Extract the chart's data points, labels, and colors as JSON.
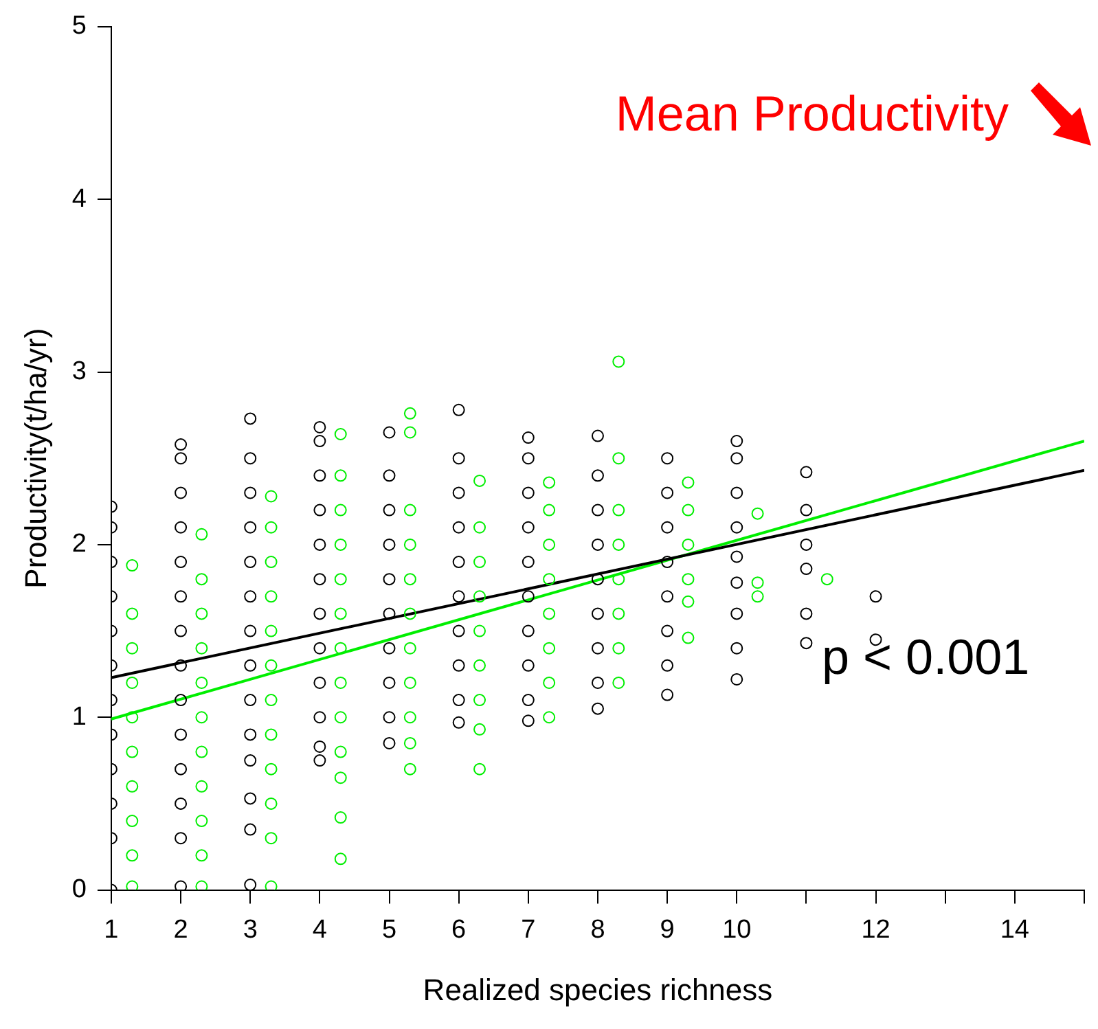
{
  "chart_data": {
    "type": "scatter",
    "xlabel": "Realized species richness",
    "ylabel": "Productivity(t/ha/yr)",
    "annotations": [
      "Mean Productivity",
      "p < 0.001"
    ],
    "xlim": [
      1,
      15
    ],
    "xticks": [
      1,
      2,
      3,
      4,
      5,
      6,
      7,
      8,
      9,
      10,
      {
        "value": 11,
        "label": null
      },
      12,
      {
        "value": 13,
        "label": null
      },
      14,
      {
        "value": 15,
        "label": null
      }
    ],
    "ylim": [
      0,
      5
    ],
    "yticks": [
      0,
      1,
      2,
      3,
      4,
      5
    ],
    "grid": false,
    "legend": false,
    "marker": "circle",
    "series": [
      {
        "color": "#000000",
        "x": [
          1,
          1,
          1,
          1,
          1,
          1,
          1,
          1,
          1,
          1,
          1,
          1,
          2,
          2,
          2,
          2,
          2,
          2,
          2,
          2,
          2,
          2,
          2,
          2,
          2,
          2,
          3,
          3,
          3,
          3,
          3,
          3,
          3,
          3,
          3,
          3,
          3,
          3,
          3,
          3,
          4,
          4,
          4,
          4,
          4,
          4,
          4,
          4,
          4,
          4,
          4,
          4,
          5,
          5,
          5,
          5,
          5,
          5,
          5,
          5,
          5,
          5,
          6,
          6,
          6,
          6,
          6,
          6,
          6,
          6,
          6,
          6,
          7,
          7,
          7,
          7,
          7,
          7,
          7,
          7,
          7,
          7,
          8,
          8,
          8,
          8,
          8,
          8,
          8,
          8,
          8,
          9,
          9,
          9,
          9,
          9,
          9,
          9,
          9,
          10,
          10,
          10,
          10,
          10,
          10,
          10,
          10,
          10,
          11,
          11,
          11,
          11,
          11,
          11,
          12,
          12
        ],
        "values": [
          0,
          0.3,
          0.5,
          0.7,
          0.9,
          1.1,
          1.3,
          1.5,
          1.7,
          1.9,
          2.1,
          2.22,
          0.02,
          0.3,
          0.5,
          0.7,
          0.9,
          1.1,
          1.3,
          1.5,
          1.7,
          1.9,
          2.1,
          2.3,
          2.5,
          2.58,
          0.03,
          0.35,
          0.53,
          0.75,
          0.9,
          1.1,
          1.3,
          1.5,
          1.7,
          1.9,
          2.1,
          2.3,
          2.5,
          2.73,
          0.75,
          0.83,
          1.0,
          1.2,
          1.4,
          1.6,
          1.8,
          2.0,
          2.2,
          2.4,
          2.6,
          2.68,
          0.85,
          1.0,
          1.2,
          1.4,
          1.6,
          1.8,
          2.0,
          2.2,
          2.4,
          2.65,
          0.97,
          1.1,
          1.3,
          1.5,
          1.7,
          1.9,
          2.1,
          2.3,
          2.5,
          2.78,
          0.98,
          1.1,
          1.3,
          1.5,
          1.7,
          1.9,
          2.1,
          2.3,
          2.5,
          2.62,
          1.05,
          1.2,
          1.4,
          1.6,
          1.8,
          2.0,
          2.2,
          2.4,
          2.63,
          1.13,
          1.3,
          1.5,
          1.7,
          1.9,
          2.1,
          2.3,
          2.5,
          1.22,
          1.4,
          1.6,
          1.78,
          1.93,
          2.1,
          2.3,
          2.5,
          2.6,
          1.43,
          1.6,
          1.86,
          2.0,
          2.2,
          2.42,
          1.45,
          1.7
        ]
      },
      {
        "color": "#00ee00",
        "x": [
          1.3,
          1.3,
          1.3,
          1.3,
          1.3,
          1.3,
          1.3,
          1.3,
          1.3,
          1.3,
          2.3,
          2.3,
          2.3,
          2.3,
          2.3,
          2.3,
          2.3,
          2.3,
          2.3,
          2.3,
          2.3,
          3.3,
          3.3,
          3.3,
          3.3,
          3.3,
          3.3,
          3.3,
          3.3,
          3.3,
          3.3,
          3.3,
          3.3,
          4.3,
          4.3,
          4.3,
          4.3,
          4.3,
          4.3,
          4.3,
          4.3,
          4.3,
          4.3,
          4.3,
          4.3,
          4.3,
          5.3,
          5.3,
          5.3,
          5.3,
          5.3,
          5.3,
          5.3,
          5.3,
          5.3,
          5.3,
          5.3,
          6.3,
          6.3,
          6.3,
          6.3,
          6.3,
          6.3,
          6.3,
          6.3,
          6.3,
          7.3,
          7.3,
          7.3,
          7.3,
          7.3,
          7.3,
          7.3,
          7.3,
          8.3,
          8.3,
          8.3,
          8.3,
          8.3,
          8.3,
          8.3,
          8.3,
          9.3,
          9.3,
          9.3,
          9.3,
          9.3,
          9.3,
          10.3,
          10.3,
          10.3,
          11.3
        ],
        "values": [
          0.02,
          0.2,
          0.4,
          0.6,
          0.8,
          1.0,
          1.2,
          1.4,
          1.6,
          1.88,
          0.02,
          0.2,
          0.4,
          0.6,
          0.8,
          1.0,
          1.2,
          1.4,
          1.6,
          1.8,
          2.06,
          0.02,
          0.3,
          0.5,
          0.7,
          0.9,
          1.1,
          1.3,
          1.5,
          1.7,
          1.9,
          2.1,
          2.28,
          0.18,
          0.42,
          0.65,
          0.8,
          1.0,
          1.2,
          1.4,
          1.6,
          1.8,
          2.0,
          2.2,
          2.4,
          2.64,
          0.7,
          0.85,
          1.0,
          1.2,
          1.4,
          1.6,
          1.8,
          2.0,
          2.2,
          2.65,
          2.76,
          0.7,
          0.93,
          1.1,
          1.3,
          1.5,
          1.7,
          1.9,
          2.1,
          2.37,
          1.0,
          1.2,
          1.4,
          1.6,
          1.8,
          2.0,
          2.2,
          2.36,
          1.2,
          1.4,
          1.6,
          1.8,
          2.0,
          2.2,
          2.5,
          3.06,
          1.46,
          1.67,
          1.8,
          2.0,
          2.2,
          2.36,
          1.7,
          1.78,
          2.18,
          1.8
        ]
      },
      {
        "type": "line",
        "marker": "none",
        "color": "#000000",
        "x": [
          1,
          15
        ],
        "values": [
          1.23,
          2.43
        ]
      },
      {
        "type": "line",
        "marker": "none",
        "color": "#00ee00",
        "x": [
          1,
          15
        ],
        "values": [
          0.99,
          2.6
        ]
      }
    ]
  }
}
